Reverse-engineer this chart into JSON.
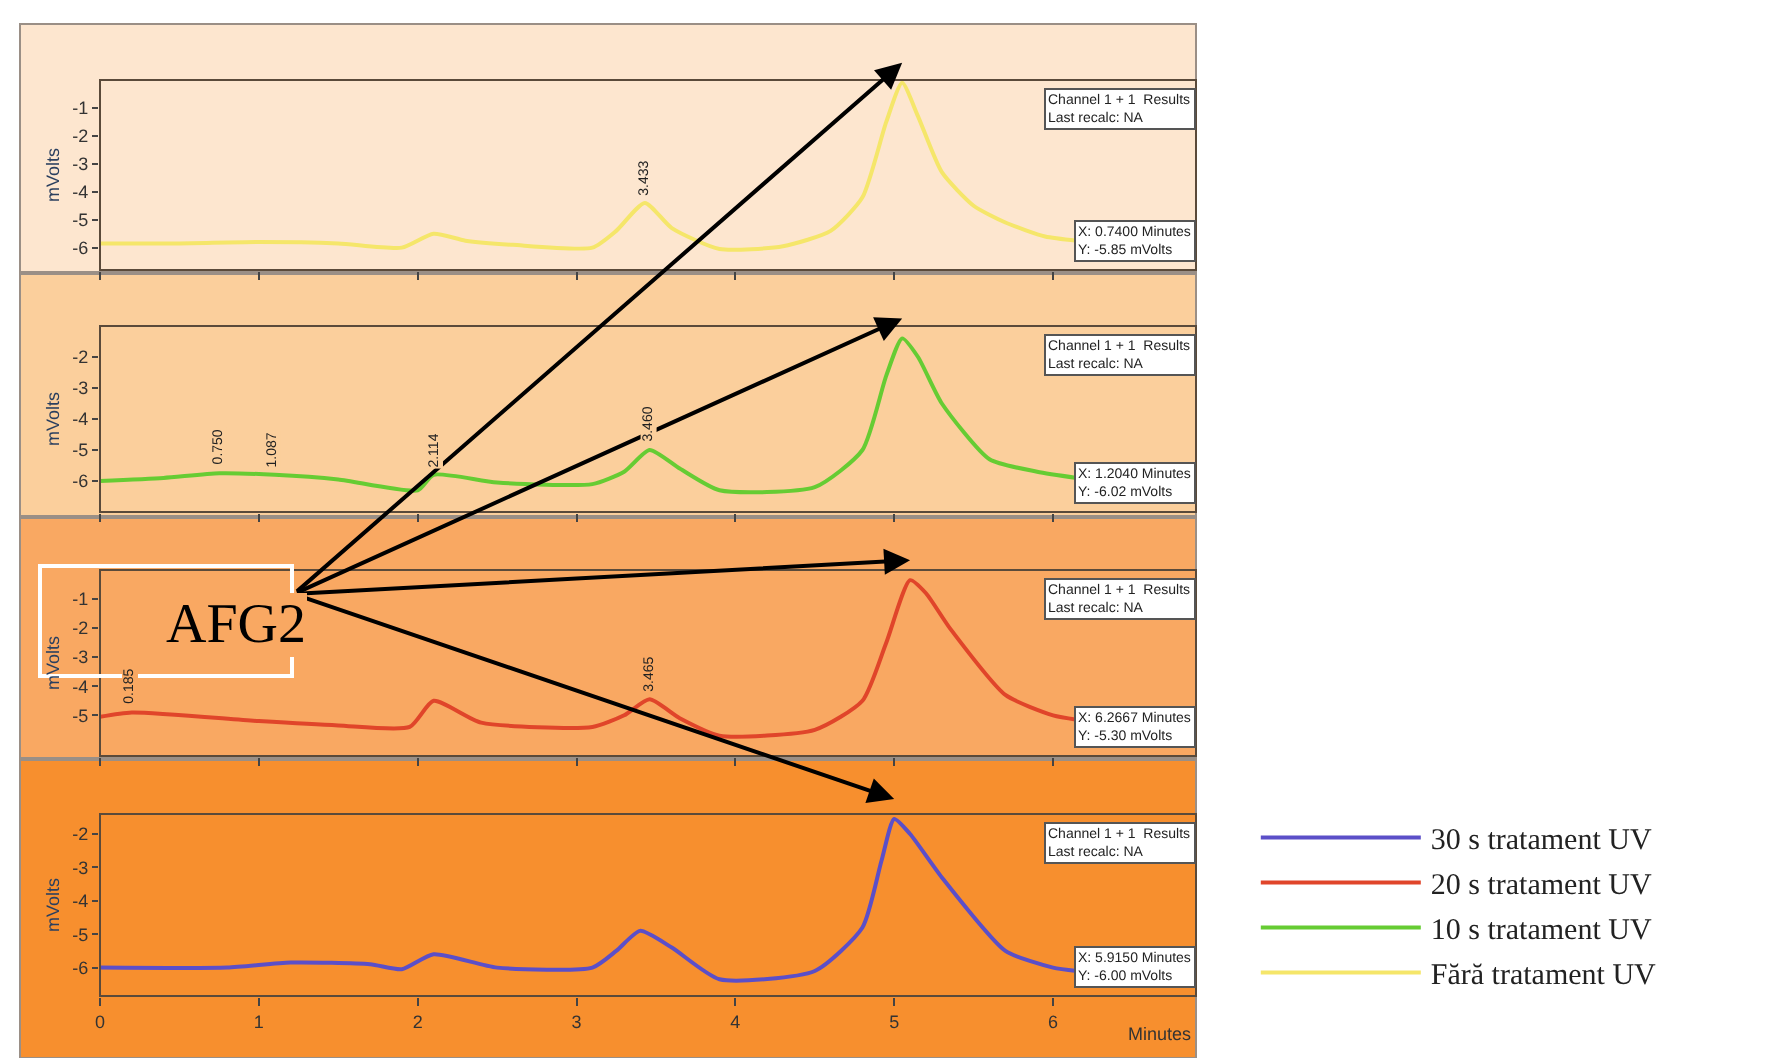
{
  "chart_data": [
    {
      "type": "line",
      "ylabel": "mVolts",
      "tick_labels": "y",
      "legend": "bottom right",
      "xlim": [
        0,
        6.9
      ],
      "xticks": [
        0,
        1,
        2,
        3,
        4,
        5,
        6
      ],
      "ylim": [
        -6.8,
        0
      ],
      "yticks": [
        -1,
        -2,
        -3,
        -4,
        -5,
        -6
      ],
      "x": [
        0,
        0.5,
        1.0,
        1.5,
        1.9,
        2.1,
        2.3,
        2.6,
        3.1,
        3.25,
        3.43,
        3.6,
        3.9,
        4.3,
        4.6,
        4.8,
        4.95,
        5.05,
        5.15,
        5.3,
        5.5,
        5.7,
        5.95,
        6.15
      ],
      "series": [
        {
          "name": "Fără tratament UV",
          "color": "#f5e66a",
          "values": [
            -5.85,
            -5.85,
            -5.8,
            -5.85,
            -6.0,
            -5.5,
            -5.75,
            -5.9,
            -6.0,
            -5.4,
            -4.4,
            -5.3,
            -6.05,
            -5.95,
            -5.4,
            -4.2,
            -1.5,
            -0.1,
            -1.3,
            -3.3,
            -4.5,
            -5.1,
            -5.6,
            -5.75
          ]
        }
      ],
      "annotations": [
        "Channel 1 + 1  Results\nLast recalc: NA",
        "X: 0.7400 Minutes\nY: -5.85 mVolts",
        {
          "text": "3.433",
          "x": 3.43,
          "y": -4.4
        }
      ]
    },
    {
      "type": "line",
      "ylabel": "mVolts",
      "tick_labels": "y",
      "legend": "bottom right",
      "xlim": [
        0,
        6.9
      ],
      "xticks": [
        0,
        1,
        2,
        3,
        4,
        5,
        6
      ],
      "ylim": [
        -7,
        -1
      ],
      "yticks": [
        -2,
        -3,
        -4,
        -5,
        -6
      ],
      "x": [
        0,
        0.4,
        0.75,
        1.1,
        1.5,
        2.0,
        2.1,
        2.5,
        3.1,
        3.3,
        3.46,
        3.65,
        3.9,
        4.5,
        4.8,
        4.95,
        5.05,
        5.15,
        5.3,
        5.6,
        5.9,
        6.15
      ],
      "series": [
        {
          "name": "10 s tratament UV",
          "color": "#66cc33",
          "values": [
            -6.0,
            -5.9,
            -5.75,
            -5.8,
            -5.95,
            -6.3,
            -5.8,
            -6.05,
            -6.1,
            -5.7,
            -5.0,
            -5.6,
            -6.3,
            -6.2,
            -5.0,
            -2.6,
            -1.4,
            -2.0,
            -3.5,
            -5.3,
            -5.7,
            -5.9
          ]
        }
      ],
      "annotations": [
        "Channel 1 + 1  Results\nLast recalc: NA",
        "X: 1.2040 Minutes\nY: -6.02 mVolts",
        {
          "text": "0.750",
          "x": 0.75,
          "y": -5.75
        },
        {
          "text": "1.087",
          "x": 1.087,
          "y": -5.8
        },
        {
          "text": "2.114",
          "x": 2.114,
          "y": -5.8
        },
        {
          "text": "3.460",
          "x": 3.46,
          "y": -5.0
        }
      ]
    },
    {
      "type": "line",
      "ylabel": "mVolts",
      "tick_labels": "y",
      "legend": "bottom right",
      "xlim": [
        0,
        6.9
      ],
      "xticks": [
        0,
        1,
        2,
        3,
        4,
        5,
        6
      ],
      "ylim": [
        -6.4,
        0
      ],
      "yticks": [
        -1,
        -2,
        -3,
        -4,
        -5
      ],
      "x": [
        0,
        0.2,
        1.0,
        1.5,
        1.95,
        2.1,
        2.4,
        3.1,
        3.3,
        3.46,
        3.65,
        3.9,
        4.5,
        4.8,
        4.95,
        5.1,
        5.2,
        5.35,
        5.7,
        6.0,
        6.15
      ],
      "series": [
        {
          "name": "20 s tratament UV",
          "color": "#e0452a",
          "values": [
            -5.05,
            -4.9,
            -5.2,
            -5.35,
            -5.4,
            -4.5,
            -5.25,
            -5.4,
            -5.0,
            -4.45,
            -5.1,
            -5.7,
            -5.5,
            -4.5,
            -2.5,
            -0.35,
            -0.8,
            -2.0,
            -4.3,
            -5.0,
            -5.15
          ]
        }
      ],
      "annotations": [
        "Channel 1 + 1  Results\nLast recalc: NA",
        "X: 6.2667 Minutes\nY: -5.30 mVolts",
        "AFG2",
        {
          "text": "0.185",
          "x": 0.185,
          "y": -4.9
        },
        {
          "text": "3.465",
          "x": 3.465,
          "y": -4.45
        }
      ]
    },
    {
      "type": "line",
      "ylabel": "mVolts",
      "xlabel": "Minutes",
      "legend": "right",
      "xlim": [
        0,
        6.9
      ],
      "xticks": [
        0,
        1,
        2,
        3,
        4,
        5,
        6
      ],
      "ylim": [
        -6.85,
        -1.4
      ],
      "yticks": [
        -2,
        -3,
        -4,
        -5,
        -6
      ],
      "x": [
        0,
        0.8,
        1.2,
        1.7,
        1.9,
        2.1,
        2.5,
        3.1,
        3.25,
        3.4,
        3.6,
        3.9,
        4.5,
        4.8,
        4.92,
        5.0,
        5.1,
        5.3,
        5.7,
        6.0,
        6.15
      ],
      "series": [
        {
          "name": "30 s tratament UV",
          "color": "#5b4fc8",
          "values": [
            -6.0,
            -6.0,
            -5.85,
            -5.9,
            -6.05,
            -5.6,
            -6.0,
            -6.0,
            -5.5,
            -4.9,
            -5.4,
            -6.35,
            -6.1,
            -4.8,
            -2.8,
            -1.55,
            -2.0,
            -3.3,
            -5.5,
            -6.0,
            -6.1
          ]
        }
      ],
      "annotations": [
        "Channel 1 + 1  Results\nLast recalc: NA",
        "X: 5.9150 Minutes\nY: -6.00 mVolts"
      ]
    }
  ]
}
